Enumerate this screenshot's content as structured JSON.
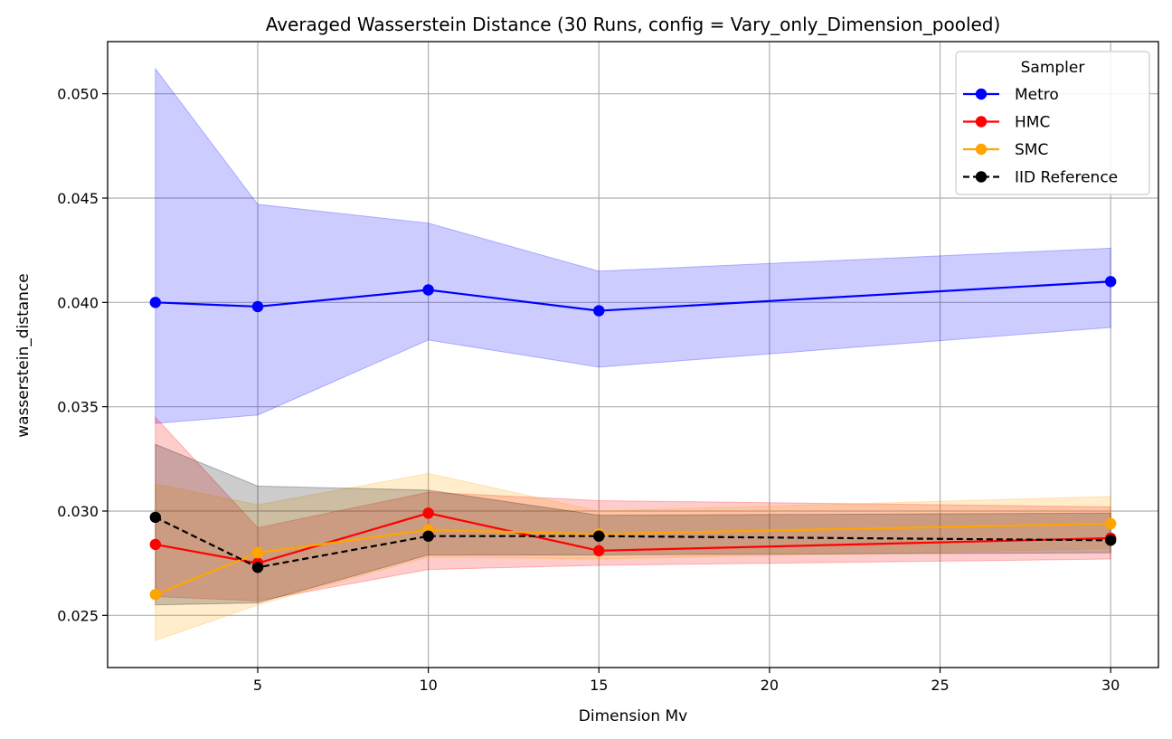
{
  "chart_data": {
    "type": "line",
    "title": "Averaged Wasserstein Distance (30 Runs, config = Vary_only_Dimension_pooled)",
    "xlabel": "Dimension Mv",
    "ylabel": "wasserstein_distance",
    "x": [
      2,
      5,
      10,
      15,
      30
    ],
    "xlim": [
      0.6,
      31.4
    ],
    "ylim": [
      0.0225,
      0.0525
    ],
    "xticks": [
      5,
      10,
      15,
      20,
      25,
      30
    ],
    "xtick_labels": [
      "5",
      "10",
      "15",
      "20",
      "25",
      "30"
    ],
    "yticks": [
      0.025,
      0.03,
      0.035,
      0.04,
      0.045,
      0.05
    ],
    "ytick_labels": [
      "0.025",
      "0.030",
      "0.035",
      "0.040",
      "0.045",
      "0.050"
    ],
    "grid": true,
    "legend": {
      "title": "Sampler",
      "placement": "top-right"
    },
    "series": [
      {
        "name": "Metro",
        "color": "#0000ff",
        "dashed": false,
        "values": [
          0.04,
          0.0398,
          0.0406,
          0.0396,
          0.041
        ],
        "band_upper": [
          0.0512,
          0.0447,
          0.0438,
          0.0415,
          0.0426
        ],
        "band_lower": [
          0.0342,
          0.0346,
          0.0382,
          0.0369,
          0.0388
        ]
      },
      {
        "name": "HMC",
        "color": "#ff0000",
        "dashed": false,
        "values": [
          0.0284,
          0.0275,
          0.0299,
          0.0281,
          0.0287
        ],
        "band_upper": [
          0.0345,
          0.0292,
          0.0309,
          0.0305,
          0.0302
        ],
        "band_lower": [
          0.0259,
          0.0257,
          0.0272,
          0.0274,
          0.0277
        ]
      },
      {
        "name": "SMC",
        "color": "#ffa500",
        "dashed": false,
        "values": [
          0.026,
          0.028,
          0.0291,
          0.0289,
          0.0294
        ],
        "band_upper": [
          0.0313,
          0.0303,
          0.0318,
          0.03,
          0.0307
        ],
        "band_lower": [
          0.0238,
          0.0255,
          0.0278,
          0.0277,
          0.0282
        ]
      },
      {
        "name": "IID Reference",
        "color": "#000000",
        "dashed": true,
        "values": [
          0.0297,
          0.0273,
          0.0288,
          0.0288,
          0.0286
        ],
        "band_upper": [
          0.0332,
          0.0312,
          0.031,
          0.0298,
          0.0299
        ],
        "band_lower": [
          0.0255,
          0.0256,
          0.0279,
          0.0279,
          0.028
        ]
      }
    ]
  }
}
